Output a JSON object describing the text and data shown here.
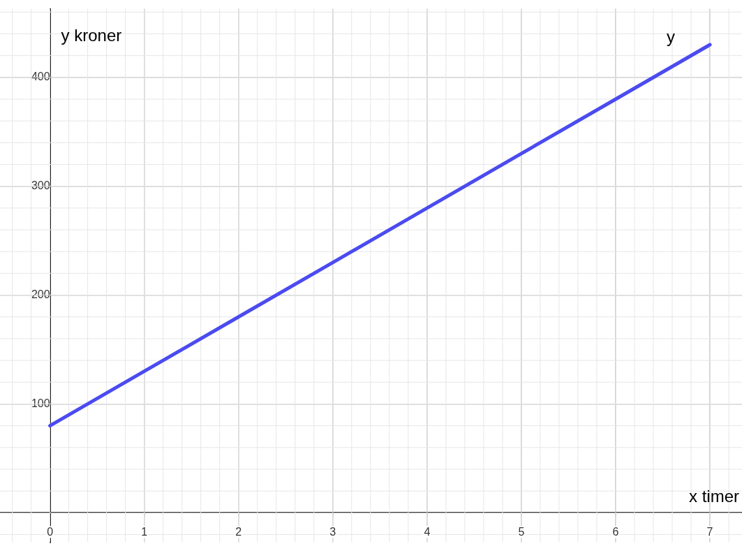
{
  "chart_data": {
    "type": "line",
    "xlabel": "x timer",
    "ylabel": "y kroner",
    "x": [
      0,
      1,
      2,
      3,
      4,
      5,
      6,
      7
    ],
    "series": [
      {
        "name": "y",
        "color": "#4b4bf0",
        "values": [
          80,
          130,
          180,
          230,
          280,
          330,
          380,
          430
        ]
      }
    ],
    "xlim": [
      -0.53,
      7.34
    ],
    "ylim": [
      -27,
      463
    ],
    "xticks": [
      0,
      1,
      2,
      3,
      4,
      5,
      6,
      7
    ],
    "yticks": [
      100,
      200,
      300,
      400
    ],
    "grid": true,
    "marker": "none",
    "line_style": "solid",
    "legend": false
  }
}
